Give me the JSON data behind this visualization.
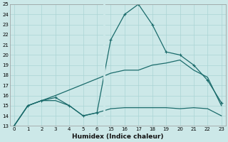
{
  "xlabel": "Humidex (Indice chaleur)",
  "bg_color": "#cce8e8",
  "grid_color": "#aad4d4",
  "line_color": "#1a6b6b",
  "ylim": [
    13,
    25
  ],
  "yticks": [
    13,
    14,
    15,
    16,
    17,
    18,
    19,
    20,
    21,
    22,
    23,
    24,
    25
  ],
  "xtick_labels": [
    "0",
    "1",
    "2",
    "3",
    "4",
    "5",
    "6",
    "15",
    "16",
    "17",
    "18",
    "19",
    "20",
    "21",
    "22",
    "23"
  ],
  "xtick_vals": [
    0,
    1,
    2,
    3,
    4,
    5,
    6,
    7,
    8,
    9,
    10,
    11,
    12,
    13,
    14,
    15
  ],
  "xlim": [
    -0.3,
    15.3
  ],
  "line1_x": [
    0,
    1,
    2,
    3,
    4,
    5,
    6,
    7,
    8,
    9,
    10,
    11,
    12,
    13,
    14,
    15
  ],
  "line1_y": [
    13.0,
    15.0,
    15.5,
    15.5,
    15.0,
    14.0,
    14.3,
    14.7,
    14.8,
    14.8,
    14.8,
    14.8,
    14.7,
    14.8,
    14.7,
    14.0
  ],
  "line2_x": [
    0,
    1,
    2,
    3,
    7,
    8,
    9,
    10,
    11,
    12,
    13,
    14,
    15
  ],
  "line2_y": [
    13.0,
    15.0,
    15.5,
    16.0,
    18.2,
    18.5,
    18.5,
    19.0,
    19.2,
    19.5,
    18.5,
    17.8,
    15.0
  ],
  "line3_x": [
    0,
    1,
    2,
    3,
    4,
    5,
    6,
    7,
    8,
    9,
    10,
    11,
    12,
    13,
    14,
    15
  ],
  "line3_y": [
    13.0,
    15.0,
    15.5,
    15.8,
    15.0,
    14.0,
    14.3,
    21.5,
    24.0,
    25.0,
    23.0,
    20.3,
    20.0,
    19.0,
    17.5,
    15.3
  ],
  "line3_markers_x": [
    0,
    1,
    2,
    3,
    4,
    5,
    6,
    7,
    8,
    9,
    10,
    11,
    12,
    13,
    14,
    15
  ],
  "line3_markers_y": [
    13.0,
    15.0,
    15.5,
    15.8,
    15.0,
    14.0,
    14.3,
    21.5,
    24.0,
    25.0,
    23.0,
    20.3,
    20.0,
    19.0,
    17.5,
    15.3
  ]
}
